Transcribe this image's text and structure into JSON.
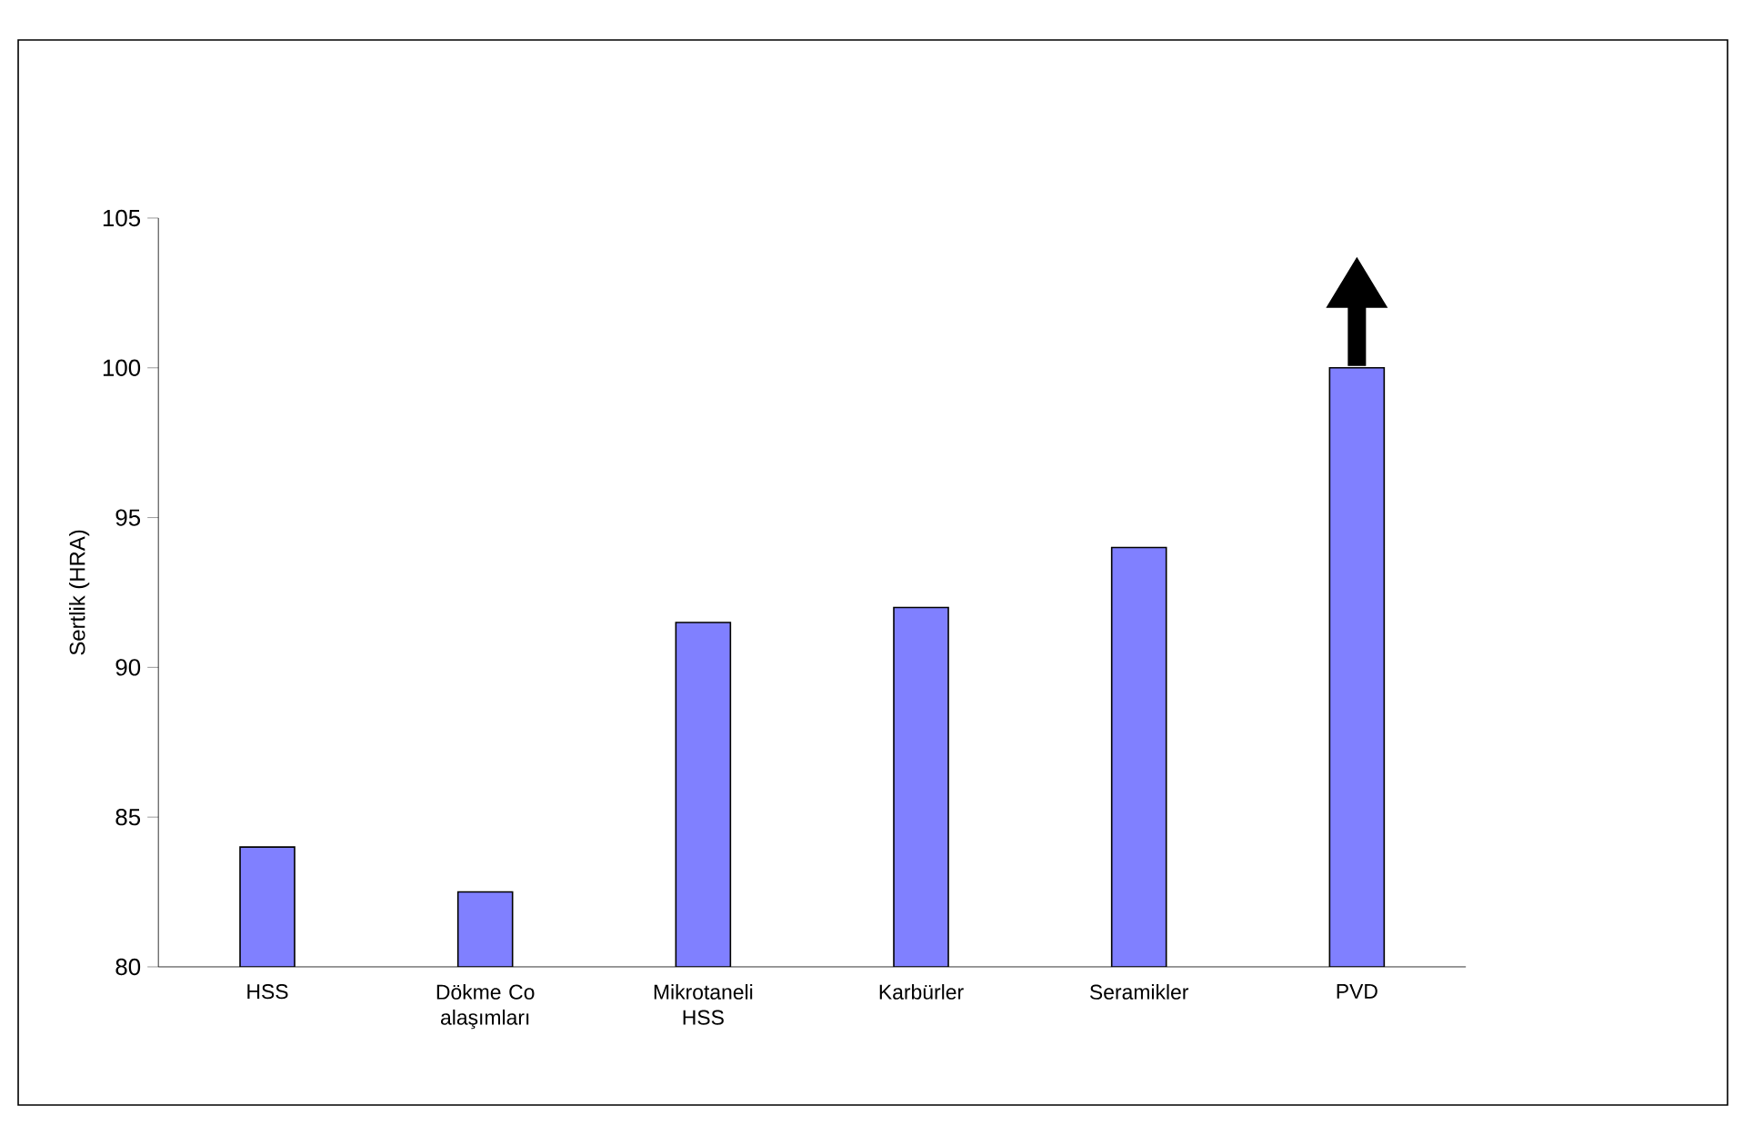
{
  "chart_data": {
    "type": "bar",
    "ylabel": "Sertlik (HRA)",
    "categories": [
      "HSS",
      "Dökme Co alaşımları",
      "Mikrotaneli HSS",
      "Karbürler",
      "Seramikler",
      "PVD"
    ],
    "values": [
      84,
      82.5,
      91.5,
      92,
      94,
      100
    ],
    "color": "#8080ff",
    "ylim": [
      80,
      105
    ],
    "yticks": [
      80,
      85,
      90,
      95,
      100,
      105
    ]
  }
}
